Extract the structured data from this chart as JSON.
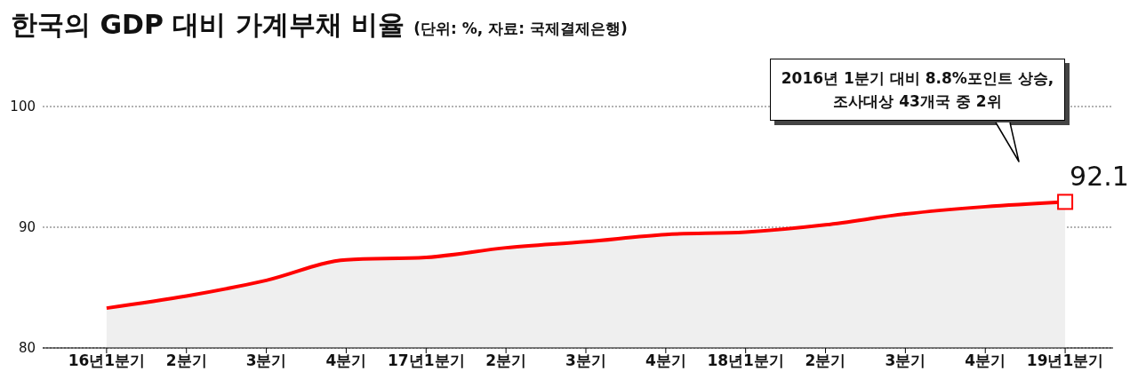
{
  "chart_data": {
    "type": "area",
    "title": "한국의 GDP 대비 가계부채 비율",
    "subtitle": "(단위: %, 자료: 국제결제은행)",
    "categories": [
      "16년1분기",
      "2분기",
      "3분기",
      "4분기",
      "17년1분기",
      "2분기",
      "3분기",
      "4분기",
      "18년1분기",
      "2분기",
      "3분기",
      "4분기",
      "19년1분기"
    ],
    "series": [
      {
        "color": "#ff0000",
        "values": [
          83.3,
          84.3,
          85.6,
          87.3,
          87.5,
          88.3,
          88.8,
          89.4,
          89.6,
          90.2,
          91.1,
          91.7,
          92.1
        ],
        "value_labels": [
          null,
          null,
          null,
          null,
          null,
          null,
          null,
          null,
          null,
          null,
          null,
          null,
          "92.1"
        ]
      }
    ],
    "ylim": [
      80,
      100
    ],
    "yticks": [
      80,
      90,
      100
    ],
    "grid": "y",
    "annotations": [
      "2016년 1분기 대비 8.8%포인트 상승,\n조사대상 43개국 중 2위"
    ]
  }
}
